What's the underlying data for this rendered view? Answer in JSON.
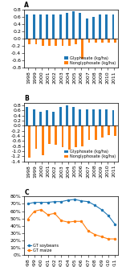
{
  "chart_data": [
    {
      "type": "bar",
      "title": "A",
      "categories": [
        "1998",
        "1999",
        "2000",
        "2001",
        "2002",
        "2003",
        "2004",
        "2005",
        "2006",
        "2007",
        "2008",
        "2009",
        "2010",
        "2011"
      ],
      "series": [
        {
          "name": "Glyphosate (kg/ha)",
          "values": [
            0.65,
            0.65,
            0.65,
            0.65,
            0.65,
            0.65,
            0.7,
            0.75,
            0.7,
            0.55,
            0.6,
            0.65,
            0.65,
            0.65
          ]
        },
        {
          "name": "Nonglyphosate (kg/ha)",
          "values": [
            -0.15,
            -0.15,
            -0.2,
            -0.2,
            -0.2,
            -0.2,
            -0.2,
            -0.15,
            -0.55,
            -0.1,
            -0.1,
            -0.1,
            -0.1,
            -0.1
          ]
        }
      ],
      "ylim": [
        -0.8,
        0.8
      ],
      "yticks": [
        -0.8,
        -0.6,
        -0.4,
        -0.2,
        0.0,
        0.2,
        0.4,
        0.6,
        0.8
      ],
      "legend": "lower right"
    },
    {
      "type": "bar",
      "title": "B",
      "categories": [
        "1998",
        "1999",
        "2000",
        "2001",
        "2002",
        "2003",
        "2004",
        "2005",
        "2006",
        "2007",
        "2008",
        "2009",
        "2010",
        "2011"
      ],
      "series": [
        {
          "name": "Glyphosate (kg/ha)",
          "values": [
            0.75,
            0.65,
            0.55,
            0.6,
            0.55,
            0.75,
            0.8,
            0.75,
            0.65,
            0.65,
            0.65,
            0.65,
            0.65,
            0.6
          ]
        },
        {
          "name": "Nonglyphosate (kg/ha)",
          "values": [
            -1.25,
            -0.9,
            -1.15,
            -0.7,
            -0.75,
            -0.85,
            -0.95,
            -0.85,
            -0.8,
            -0.55,
            -0.55,
            -0.45,
            -0.35,
            -0.4
          ]
        }
      ],
      "ylim": [
        -1.4,
        0.9
      ],
      "yticks": [
        -1.4,
        -1.2,
        -1.0,
        -0.8,
        -0.6,
        -0.4,
        -0.2,
        0.0,
        0.2,
        0.4,
        0.6,
        0.8
      ],
      "legend": "lower right"
    },
    {
      "type": "line",
      "title": "C",
      "categories": [
        "1998",
        "1999",
        "2000",
        "2001",
        "2002",
        "2003",
        "2004",
        "2005",
        "2006",
        "2007",
        "2008",
        "2009",
        "2010",
        "2011"
      ],
      "series": [
        {
          "name": "GT soybeans",
          "marker": "o",
          "values": [
            70,
            72,
            72,
            72,
            73,
            73,
            75,
            76,
            74,
            73,
            68,
            62,
            54,
            42
          ]
        },
        {
          "name": "GT maize",
          "marker": "o",
          "values": [
            49,
            60,
            62,
            55,
            57,
            47,
            45,
            46,
            46,
            33,
            28,
            25,
            22,
            22
          ]
        }
      ],
      "ylim": [
        0,
        80
      ],
      "yticks": [
        {
          "value": 0,
          "label": "0%"
        },
        {
          "value": 10,
          "label": "10%"
        },
        {
          "value": 20,
          "label": "20%"
        },
        {
          "value": 30,
          "label": "30%"
        },
        {
          "value": 40,
          "label": "40%"
        },
        {
          "value": 50,
          "label": "50%"
        },
        {
          "value": 60,
          "label": "60%"
        },
        {
          "value": 70,
          "label": "70%"
        },
        {
          "value": 80,
          "label": "80%"
        }
      ],
      "legend": "lower left"
    }
  ]
}
